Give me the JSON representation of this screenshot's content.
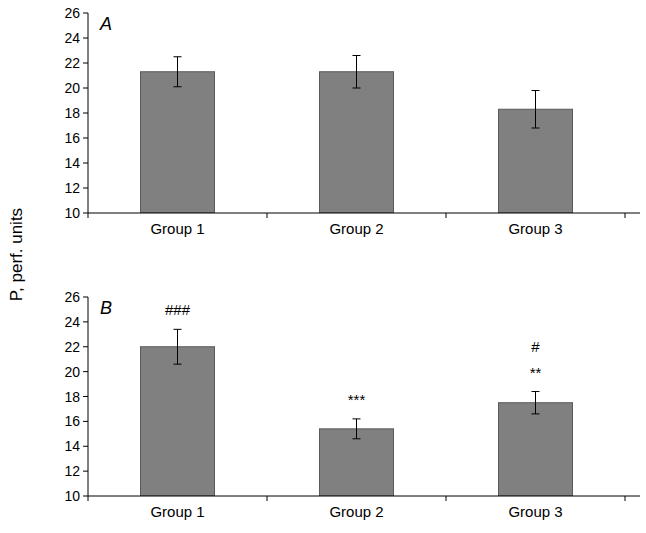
{
  "chart_data": [
    {
      "type": "bar",
      "title": "A",
      "y_label": "P, perf. units",
      "categories": [
        "Group 1",
        "Group 2",
        "Group 3"
      ],
      "values": [
        21.3,
        21.3,
        18.3
      ],
      "errors": [
        1.2,
        1.3,
        1.5
      ],
      "color": "#808080",
      "ylim": [
        10,
        26
      ],
      "yticks": [
        10,
        12,
        14,
        16,
        18,
        20,
        22,
        24,
        26
      ],
      "grid": false
    },
    {
      "type": "bar",
      "title": "B",
      "categories": [
        "Group 1",
        "Group 2",
        "Group 3"
      ],
      "values": [
        22.0,
        15.4,
        17.5
      ],
      "errors": [
        1.4,
        0.8,
        0.9
      ],
      "annotations": [
        [
          "###"
        ],
        [
          "***"
        ],
        [
          "#",
          "**"
        ]
      ],
      "color": "#808080",
      "ylim": [
        10,
        26
      ],
      "yticks": [
        10,
        12,
        14,
        16,
        18,
        20,
        22,
        24,
        26
      ],
      "grid": false
    }
  ]
}
